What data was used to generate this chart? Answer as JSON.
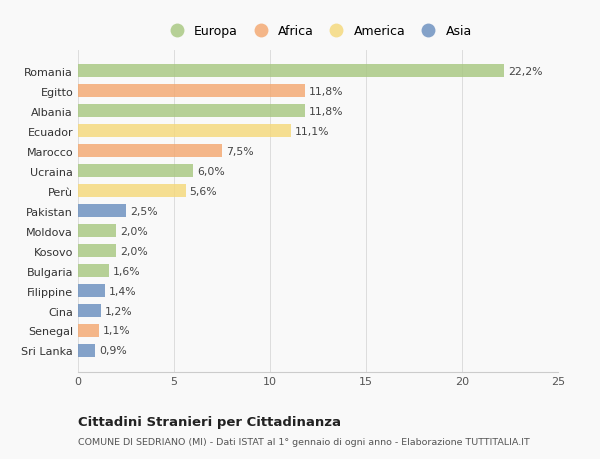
{
  "countries": [
    "Romania",
    "Egitto",
    "Albania",
    "Ecuador",
    "Marocco",
    "Ucraina",
    "Perù",
    "Pakistan",
    "Moldova",
    "Kosovo",
    "Bulgaria",
    "Filippine",
    "Cina",
    "Senegal",
    "Sri Lanka"
  ],
  "values": [
    22.2,
    11.8,
    11.8,
    11.1,
    7.5,
    6.0,
    5.6,
    2.5,
    2.0,
    2.0,
    1.6,
    1.4,
    1.2,
    1.1,
    0.9
  ],
  "labels": [
    "22,2%",
    "11,8%",
    "11,8%",
    "11,1%",
    "7,5%",
    "6,0%",
    "5,6%",
    "2,5%",
    "2,0%",
    "2,0%",
    "1,6%",
    "1,4%",
    "1,2%",
    "1,1%",
    "0,9%"
  ],
  "regions": [
    "Europa",
    "Africa",
    "Europa",
    "America",
    "Africa",
    "Europa",
    "America",
    "Asia",
    "Europa",
    "Europa",
    "Europa",
    "Asia",
    "Asia",
    "Africa",
    "Asia"
  ],
  "colors": {
    "Europa": "#a8c880",
    "Africa": "#f4a870",
    "America": "#f5d87a",
    "Asia": "#6b8fbf"
  },
  "title": "Cittadini Stranieri per Cittadinanza",
  "subtitle": "COMUNE DI SEDRIANO (MI) - Dati ISTAT al 1° gennaio di ogni anno - Elaborazione TUTTITALIA.IT",
  "xlim": [
    0,
    25
  ],
  "xticks": [
    0,
    5,
    10,
    15,
    20,
    25
  ],
  "background_color": "#f9f9f9",
  "bar_alpha": 0.82,
  "legend_order": [
    "Europa",
    "Africa",
    "America",
    "Asia"
  ]
}
